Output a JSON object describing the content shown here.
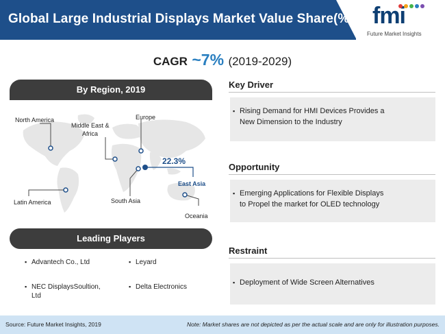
{
  "header": {
    "title": "Global Large Industrial Displays Market Value Share(%)",
    "logo_mark": "fmi",
    "logo_text": "Future Market Insights"
  },
  "cagr": {
    "label": "CAGR",
    "value": "~7%",
    "years": "(2019-2029)"
  },
  "region": {
    "title": "By Region, 2019",
    "labels": {
      "north_america": "North America",
      "middle_east_africa_1": "Middle East &",
      "middle_east_africa_2": "Africa",
      "europe": "Europe",
      "east_asia": "East Asia",
      "latin_america": "Latin America",
      "south_asia": "South Asia",
      "oceania": "Oceania"
    },
    "east_asia_share": "22.3%"
  },
  "players": {
    "title": "Leading Players",
    "items": [
      "Advantech Co., Ltd",
      "Leyard",
      "NEC DisplaysSoultion,",
      "Ltd",
      "Delta Electronics"
    ]
  },
  "key_driver": {
    "title": "Key Driver",
    "line1": "Rising Demand for HMI Devices Provides a",
    "line2": "New Dimension to the Industry"
  },
  "opportunity": {
    "title": "Opportunity",
    "line1": "Emerging Applications for Flexible Displays",
    "line2": "to Propel the market for OLED technology"
  },
  "restraint": {
    "title": "Restraint",
    "line1": "Deployment of Wide Screen Alternatives"
  },
  "footer": {
    "source": "Source: Future Market Insights, 2019",
    "note": "Note: Market shares are not depicted as per the actual scale and are only for illustration purposes."
  },
  "colors": {
    "title_bar": "#1e4f8a",
    "accent": "#2a7fc0",
    "dark": "#3d3d3d",
    "box": "#ececec",
    "footer": "#cfe3f4"
  }
}
